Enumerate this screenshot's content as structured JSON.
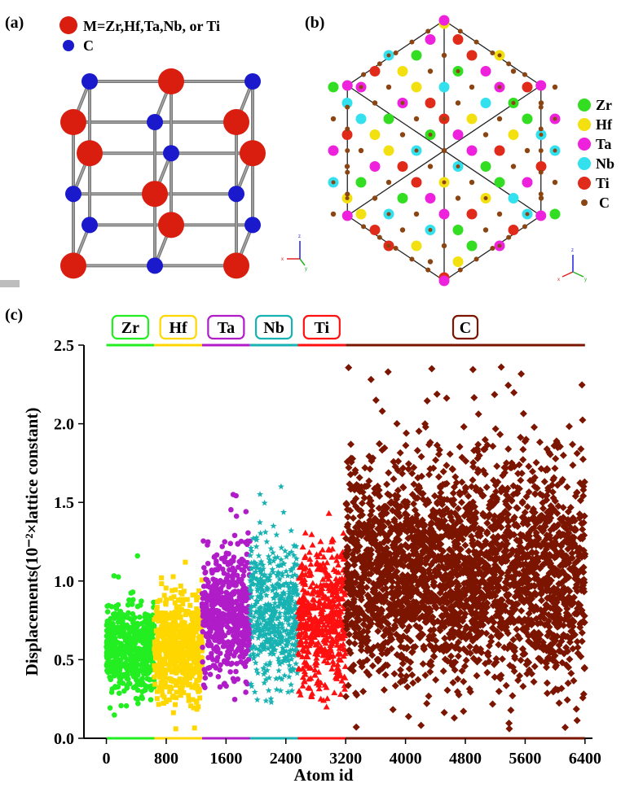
{
  "panels": {
    "a": {
      "label": "(a)",
      "legend": [
        {
          "text": "M=Zr,Hf,Ta,Nb, or Ti",
          "color": "#d91e10"
        },
        {
          "text": "C",
          "color": "#1a1acc"
        }
      ]
    },
    "b": {
      "label": "(b)",
      "legend": [
        {
          "text": "Zr",
          "color": "#33dd22"
        },
        {
          "text": "Hf",
          "color": "#f2e010"
        },
        {
          "text": "Ta",
          "color": "#ee22dd"
        },
        {
          "text": "Nb",
          "color": "#33e0ee"
        },
        {
          "text": "Ti",
          "color": "#e02a1a"
        },
        {
          "text": "C",
          "color": "#8b4513"
        }
      ]
    },
    "c": {
      "label": "(c)"
    }
  },
  "chart_data": {
    "type": "scatter",
    "xlabel": "Atom id",
    "ylabel": "Displacements(10⁻²×lattice constant)",
    "xlim": [
      -300,
      6500
    ],
    "ylim": [
      0,
      2.5
    ],
    "xticks": [
      "0",
      "800",
      "1600",
      "2400",
      "3200",
      "4000",
      "4800",
      "5600",
      "6400"
    ],
    "yticks": [
      "0.0",
      "0.5",
      "1.0",
      "1.5",
      "2.0",
      "2.5"
    ],
    "series": [
      {
        "name": "Zr",
        "color": "#22ee22",
        "marker": "circle",
        "x_range": [
          0,
          640
        ],
        "y_range": [
          0.13,
          1.01
        ],
        "y_max_outlier": 1.16
      },
      {
        "name": "Hf",
        "color": "#ffd700",
        "marker": "square",
        "x_range": [
          640,
          1280
        ],
        "y_range": [
          0.05,
          1.1
        ],
        "y_max_outlier": 1.12
      },
      {
        "name": "Ta",
        "color": "#b01cc8",
        "marker": "circle",
        "x_range": [
          1280,
          1920
        ],
        "y_range": [
          0.2,
          1.4
        ],
        "y_max_outlier": 1.55
      },
      {
        "name": "Nb",
        "color": "#19b2b2",
        "marker": "star",
        "x_range": [
          1920,
          2560
        ],
        "y_range": [
          0.12,
          1.45
        ],
        "y_max_outlier": 1.6
      },
      {
        "name": "Ti",
        "color": "#ff1010",
        "marker": "triangle",
        "x_range": [
          2560,
          3200
        ],
        "y_range": [
          0.12,
          1.42
        ],
        "y_max_outlier": 1.43
      },
      {
        "name": "C",
        "color": "#7b1500",
        "marker": "diamond",
        "x_range": [
          3200,
          6400
        ],
        "y_range": [
          0.05,
          2.05
        ],
        "y_max_outlier": 2.36
      }
    ]
  }
}
